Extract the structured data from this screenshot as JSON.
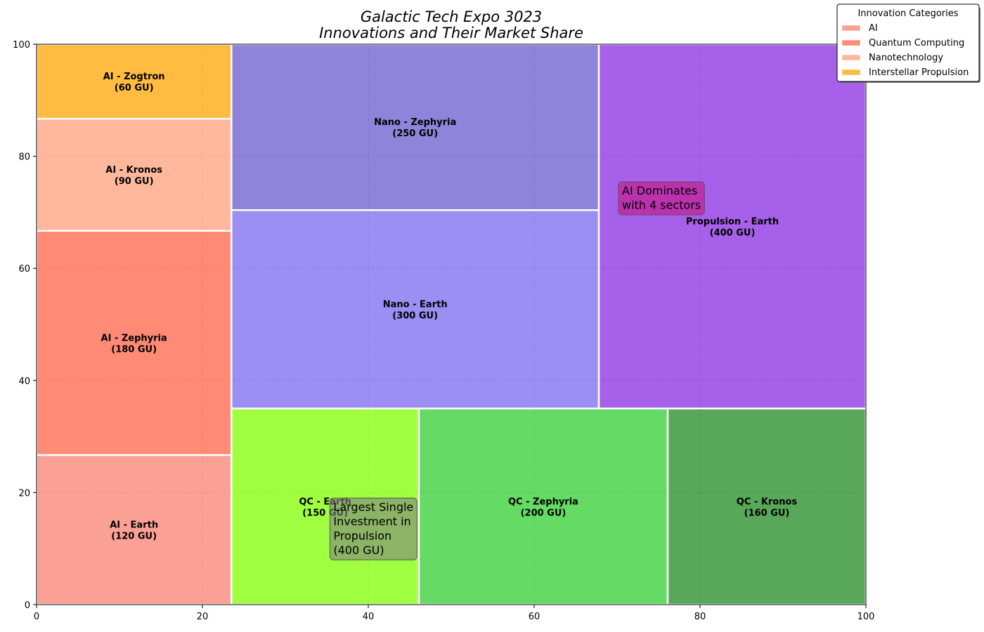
{
  "chart_data": {
    "type": "treemap",
    "title": [
      "Galactic Tech Expo 3023",
      "Innovations and Their Market Share"
    ],
    "xlim": [
      0,
      100
    ],
    "ylim": [
      0,
      100
    ],
    "x_ticks": [
      0,
      20,
      40,
      60,
      80,
      100
    ],
    "y_ticks": [
      0,
      20,
      40,
      60,
      80,
      100
    ],
    "grid": true,
    "legend": {
      "title": "Innovation Categories",
      "placement": "top-right",
      "entries": [
        {
          "label": "AI",
          "color": "#fa8072"
        },
        {
          "label": "Quantum Computing",
          "color": "#ff6347"
        },
        {
          "label": "Nanotechnology",
          "color": "#ffa07a"
        },
        {
          "label": "Interstellar Propulsion",
          "color": "#ffa500"
        }
      ]
    },
    "rectangles": [
      {
        "label": "AI - Earth",
        "value_label": "(120 GU)",
        "value": 120,
        "x": 0,
        "y": 0,
        "dx": 23.5,
        "dy": 26.7,
        "color": "#fa8072"
      },
      {
        "label": "AI - Zephyria",
        "value_label": "(180 GU)",
        "value": 180,
        "x": 0,
        "y": 26.7,
        "dx": 23.5,
        "dy": 40,
        "color": "#ff6347"
      },
      {
        "label": "AI - Kronos",
        "value_label": "(90 GU)",
        "value": 90,
        "x": 0,
        "y": 66.7,
        "dx": 23.5,
        "dy": 20,
        "color": "#ffa07a"
      },
      {
        "label": "AI - Zogtron",
        "value_label": "(60 GU)",
        "value": 60,
        "x": 0,
        "y": 86.7,
        "dx": 23.5,
        "dy": 13.3,
        "color": "#ffa500"
      },
      {
        "label": "QC - Earth",
        "value_label": "(150 GU)",
        "value": 150,
        "x": 23.5,
        "y": 0,
        "dx": 22.6,
        "dy": 35,
        "color": "#7fff00"
      },
      {
        "label": "QC - Zephyria",
        "value_label": "(200 GU)",
        "value": 200,
        "x": 46.1,
        "y": 0,
        "dx": 30,
        "dy": 35,
        "color": "#32cd32"
      },
      {
        "label": "QC - Kronos",
        "value_label": "(160 GU)",
        "value": 160,
        "x": 76.1,
        "y": 0,
        "dx": 23.9,
        "dy": 35,
        "color": "#228b22"
      },
      {
        "label": "Nano - Earth",
        "value_label": "(300 GU)",
        "value": 300,
        "x": 23.5,
        "y": 35,
        "dx": 44.3,
        "dy": 35.4,
        "color": "#7b68ee"
      },
      {
        "label": "Nano - Zephyria",
        "value_label": "(250 GU)",
        "value": 250,
        "x": 23.5,
        "y": 70.4,
        "dx": 44.3,
        "dy": 29.6,
        "color": "#6a5acd"
      },
      {
        "label": "Propulsion - Earth",
        "value_label": "(400 GU)",
        "value": 400,
        "x": 67.8,
        "y": 35,
        "dx": 32.2,
        "dy": 65,
        "color": "#8a2be2"
      }
    ],
    "annotations": [
      {
        "lines": [
          "AI Dominates",
          "with 4 sectors"
        ],
        "x": 70,
        "y": 72.5,
        "color": "#c71585"
      },
      {
        "lines": [
          "Largest Single",
          "Investment in",
          "Propulsion",
          "(400 GU)"
        ],
        "x": 35.2,
        "y": 13.5,
        "color": "#808080"
      }
    ]
  }
}
